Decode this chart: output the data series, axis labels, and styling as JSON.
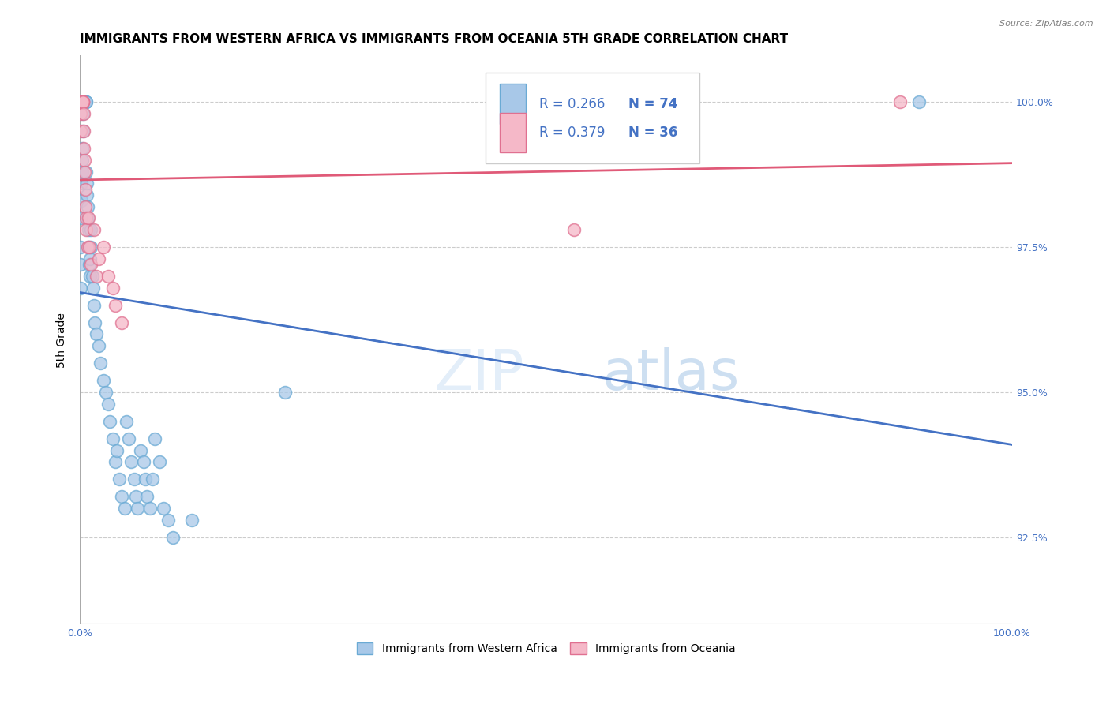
{
  "title": "IMMIGRANTS FROM WESTERN AFRICA VS IMMIGRANTS FROM OCEANIA 5TH GRADE CORRELATION CHART",
  "source": "Source: ZipAtlas.com",
  "ylabel": "5th Grade",
  "xlim": [
    0.0,
    100.0
  ],
  "ylim": [
    91.0,
    100.8
  ],
  "yticks": [
    92.5,
    95.0,
    97.5,
    100.0
  ],
  "ytick_labels": [
    "92.5%",
    "95.0%",
    "97.5%",
    "100.0%"
  ],
  "xticks": [
    0.0,
    20.0,
    40.0,
    60.0,
    80.0,
    100.0
  ],
  "xtick_labels": [
    "0.0%",
    "",
    "",
    "",
    "",
    "100.0%"
  ],
  "blue_line_color": "#4472c4",
  "pink_line_color": "#e05a78",
  "blue_scatter_face": "#a8c8e8",
  "blue_scatter_edge": "#6aaad4",
  "pink_scatter_face": "#f5b8c8",
  "pink_scatter_edge": "#e07090",
  "background_color": "#ffffff",
  "grid_color": "#cccccc",
  "title_fontsize": 11,
  "tick_fontsize": 9,
  "right_tick_color": "#4472c4",
  "legend_R_blue": "R = 0.266",
  "legend_N_blue": "N = 74",
  "legend_R_pink": "R = 0.379",
  "legend_N_pink": "N = 36",
  "watermark_text": "ZIPatlas",
  "watermark_color": "#ddeeff",
  "blue_x": [
    0.05,
    0.08,
    0.1,
    0.12,
    0.15,
    0.18,
    0.2,
    0.22,
    0.25,
    0.28,
    0.3,
    0.32,
    0.35,
    0.38,
    0.4,
    0.42,
    0.45,
    0.48,
    0.5,
    0.52,
    0.55,
    0.58,
    0.6,
    0.62,
    0.65,
    0.7,
    0.72,
    0.75,
    0.8,
    0.85,
    0.9,
    0.95,
    1.0,
    1.05,
    1.1,
    1.15,
    1.2,
    1.3,
    1.4,
    1.5,
    1.6,
    1.8,
    2.0,
    2.2,
    2.5,
    2.8,
    3.0,
    3.2,
    3.5,
    3.8,
    4.0,
    4.2,
    4.5,
    4.8,
    5.0,
    5.2,
    5.5,
    5.8,
    6.0,
    6.2,
    6.5,
    6.8,
    7.0,
    7.2,
    7.5,
    7.8,
    8.0,
    8.5,
    9.0,
    9.5,
    10.0,
    12.0,
    22.0,
    90.0
  ],
  "blue_y": [
    96.8,
    97.2,
    97.5,
    98.0,
    98.3,
    98.6,
    98.8,
    99.0,
    99.2,
    99.5,
    99.8,
    100.0,
    100.0,
    100.0,
    100.0,
    100.0,
    100.0,
    100.0,
    100.0,
    100.0,
    100.0,
    100.0,
    100.0,
    100.0,
    100.0,
    98.8,
    98.6,
    98.4,
    98.2,
    98.0,
    97.8,
    97.5,
    97.2,
    97.0,
    97.3,
    97.5,
    97.8,
    97.0,
    96.8,
    96.5,
    96.2,
    96.0,
    95.8,
    95.5,
    95.2,
    95.0,
    94.8,
    94.5,
    94.2,
    93.8,
    94.0,
    93.5,
    93.2,
    93.0,
    94.5,
    94.2,
    93.8,
    93.5,
    93.2,
    93.0,
    94.0,
    93.8,
    93.5,
    93.2,
    93.0,
    93.5,
    94.2,
    93.8,
    93.0,
    92.8,
    92.5,
    92.8,
    95.0,
    100.0
  ],
  "pink_x": [
    0.05,
    0.08,
    0.1,
    0.12,
    0.15,
    0.18,
    0.2,
    0.22,
    0.25,
    0.28,
    0.3,
    0.32,
    0.35,
    0.38,
    0.4,
    0.42,
    0.45,
    0.5,
    0.55,
    0.6,
    0.65,
    0.7,
    0.8,
    0.9,
    1.0,
    1.2,
    1.5,
    1.8,
    2.0,
    2.5,
    3.0,
    3.5,
    3.8,
    4.5,
    53.0,
    88.0
  ],
  "pink_y": [
    99.5,
    99.8,
    100.0,
    100.0,
    100.0,
    100.0,
    100.0,
    100.0,
    100.0,
    100.0,
    100.0,
    100.0,
    100.0,
    99.8,
    99.5,
    99.2,
    99.0,
    98.8,
    98.5,
    98.2,
    98.0,
    97.8,
    97.5,
    98.0,
    97.5,
    97.2,
    97.8,
    97.0,
    97.3,
    97.5,
    97.0,
    96.8,
    96.5,
    96.2,
    97.8,
    100.0
  ]
}
